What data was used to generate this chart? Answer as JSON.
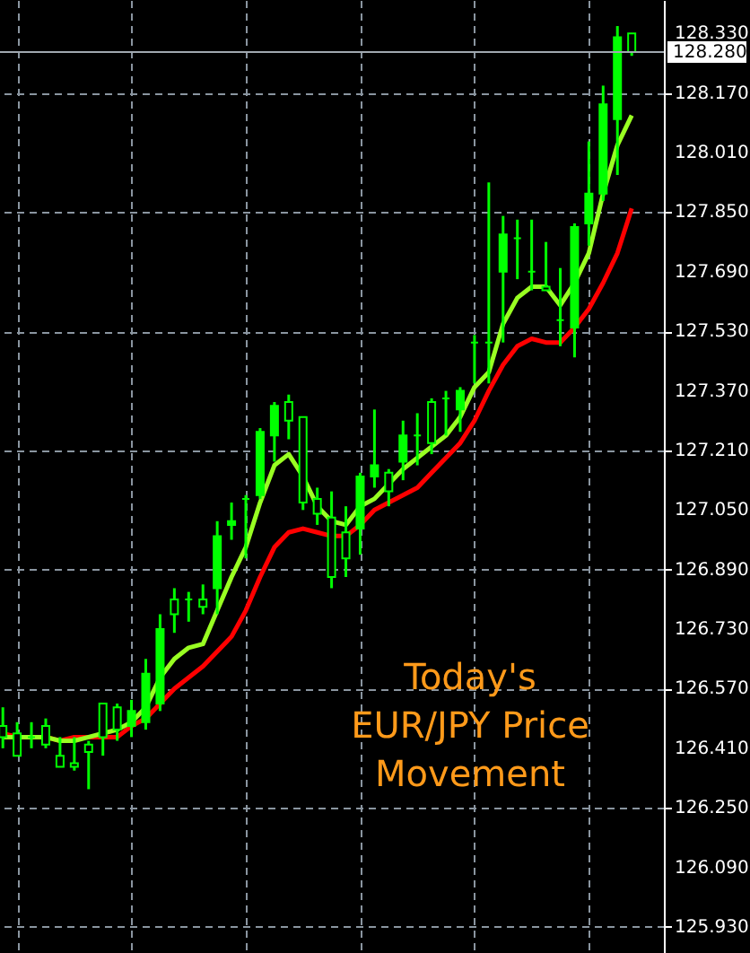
{
  "chart_data": {
    "type": "candlestick",
    "color": "#00ff00",
    "categories": [
      null,
      null,
      null,
      null,
      null,
      null,
      null,
      null,
      null,
      null,
      null,
      null,
      null,
      null,
      null,
      null,
      null,
      null,
      null,
      null,
      null,
      null,
      null,
      null,
      null,
      null,
      null,
      null,
      null,
      null,
      null,
      null,
      null,
      null,
      null,
      null,
      null,
      null,
      null,
      null,
      null,
      null,
      null,
      null,
      null
    ],
    "ohlc": [
      [
        126.47,
        126.52,
        126.41,
        126.44
      ],
      [
        126.45,
        126.48,
        126.39,
        126.39
      ],
      [
        126.44,
        126.48,
        126.41,
        126.44
      ],
      [
        126.47,
        126.49,
        126.41,
        126.42
      ],
      [
        126.39,
        126.44,
        126.36,
        126.36
      ],
      [
        126.37,
        126.44,
        126.35,
        126.36
      ],
      [
        126.42,
        126.43,
        126.3,
        126.4
      ],
      [
        126.53,
        126.53,
        126.39,
        126.44
      ],
      [
        126.52,
        126.53,
        126.43,
        126.46
      ],
      [
        126.47,
        126.54,
        126.44,
        126.51
      ],
      [
        126.48,
        126.65,
        126.46,
        126.61
      ],
      [
        126.53,
        126.77,
        126.51,
        126.73
      ],
      [
        126.81,
        126.84,
        126.72,
        126.77
      ],
      [
        126.81,
        126.83,
        126.75,
        126.81
      ],
      [
        126.81,
        126.85,
        126.77,
        126.79
      ],
      [
        126.84,
        127.02,
        126.77,
        126.98
      ],
      [
        127.01,
        127.07,
        126.97,
        127.02
      ],
      [
        127.08,
        127.09,
        126.92,
        127.08
      ],
      [
        127.09,
        127.27,
        127.08,
        127.26
      ],
      [
        127.25,
        127.34,
        127.18,
        127.33
      ],
      [
        127.34,
        127.36,
        127.24,
        127.29
      ],
      [
        127.3,
        127.3,
        127.05,
        127.07
      ],
      [
        127.08,
        127.11,
        127.01,
        127.04
      ],
      [
        127.03,
        127.1,
        126.84,
        126.87
      ],
      [
        126.99,
        127.06,
        126.87,
        126.92
      ],
      [
        127.0,
        127.15,
        126.93,
        127.14
      ],
      [
        127.14,
        127.32,
        127.11,
        127.17
      ],
      [
        127.15,
        127.16,
        127.06,
        127.1
      ],
      [
        127.18,
        127.29,
        127.13,
        127.25
      ],
      [
        127.25,
        127.31,
        127.17,
        127.25
      ],
      [
        127.34,
        127.35,
        127.2,
        127.23
      ],
      [
        127.35,
        127.37,
        127.25,
        127.35
      ],
      [
        127.32,
        127.38,
        127.26,
        127.37
      ],
      [
        127.5,
        127.52,
        127.39,
        127.5
      ],
      [
        127.5,
        127.93,
        127.39,
        127.5
      ],
      [
        127.69,
        127.84,
        127.5,
        127.79
      ],
      [
        127.78,
        127.83,
        127.67,
        127.78
      ],
      [
        127.69,
        127.83,
        127.64,
        127.69
      ],
      [
        127.65,
        127.77,
        127.64,
        127.64
      ],
      [
        127.56,
        127.7,
        127.49,
        127.56
      ],
      [
        127.54,
        127.82,
        127.46,
        127.81
      ],
      [
        127.82,
        128.04,
        127.76,
        127.9
      ],
      [
        127.9,
        128.19,
        127.88,
        128.14
      ],
      [
        128.1,
        128.35,
        127.95,
        128.32
      ],
      [
        128.33,
        128.33,
        128.27,
        128.28
      ]
    ],
    "series": [
      {
        "type": "line",
        "color": "#ff0000",
        "values": [
          126.45,
          126.44,
          126.44,
          126.44,
          126.43,
          126.44,
          126.44,
          126.44,
          126.44,
          126.47,
          126.49,
          126.53,
          126.57,
          126.6,
          126.63,
          126.67,
          126.71,
          126.78,
          126.87,
          126.95,
          126.99,
          127.0,
          126.99,
          126.98,
          126.98,
          127.01,
          127.05,
          127.07,
          127.09,
          127.11,
          127.15,
          127.19,
          127.23,
          127.29,
          127.37,
          127.44,
          127.49,
          127.51,
          127.5,
          127.5,
          127.54,
          127.59,
          127.66,
          127.74,
          127.86
        ]
      },
      {
        "type": "line",
        "color": "#99ff22",
        "values": [
          126.44,
          126.44,
          126.44,
          126.44,
          126.43,
          126.43,
          126.44,
          126.45,
          126.46,
          126.48,
          126.52,
          126.6,
          126.65,
          126.68,
          126.69,
          126.78,
          126.87,
          126.95,
          127.07,
          127.17,
          127.2,
          127.14,
          127.06,
          127.02,
          127.01,
          127.06,
          127.08,
          127.12,
          127.16,
          127.19,
          127.22,
          127.25,
          127.3,
          127.38,
          127.42,
          127.55,
          127.62,
          127.65,
          127.65,
          127.6,
          127.66,
          127.74,
          127.9,
          128.03,
          128.11
        ]
      }
    ],
    "ylim": [
      125.86,
      128.42
    ],
    "yticks": [
      {
        "value": 125.93,
        "label": "125.930"
      },
      {
        "value": 126.09,
        "label": "126.090"
      },
      {
        "value": 126.25,
        "label": "126.250"
      },
      {
        "value": 126.41,
        "label": "126.410"
      },
      {
        "value": 126.57,
        "label": "126.570"
      },
      {
        "value": 126.73,
        "label": "126.730"
      },
      {
        "value": 126.89,
        "label": "126.890"
      },
      {
        "value": 127.05,
        "label": "127.050"
      },
      {
        "value": 127.21,
        "label": "127.210"
      },
      {
        "value": 127.37,
        "label": "127.370"
      },
      {
        "value": 127.53,
        "label": "127.530"
      },
      {
        "value": 127.69,
        "label": "127.690"
      },
      {
        "value": 127.85,
        "label": "127.850"
      },
      {
        "value": 128.01,
        "label": "128.010"
      },
      {
        "value": 128.17,
        "label": "128.170"
      },
      {
        "value": 128.33,
        "label": "128.330"
      }
    ],
    "ref_lines": [
      {
        "axis": "y",
        "value": 128.28,
        "label": "128.280",
        "color": "#a0a8b0"
      }
    ],
    "annotations": [
      "Today's\nEUR/JPY Price\nMovement"
    ],
    "grid": true,
    "tick_labels": "y"
  }
}
